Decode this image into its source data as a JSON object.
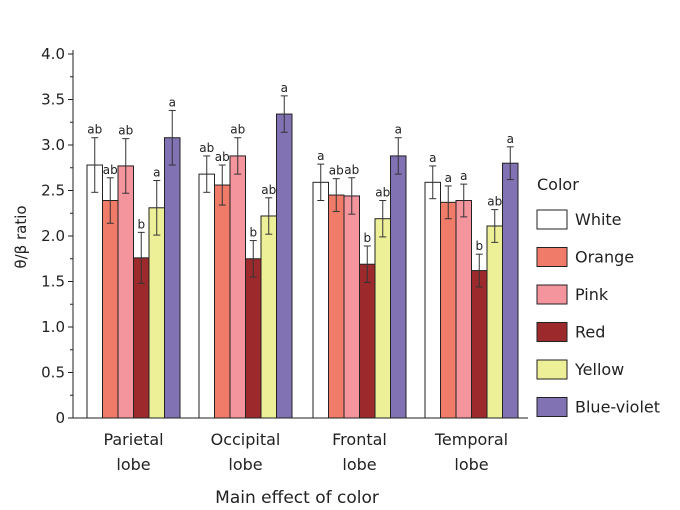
{
  "chart_data": {
    "type": "bar",
    "xlabel": "Main effect of color",
    "ylabel": "θ/β ratio",
    "ylim": [
      0,
      4.0
    ],
    "yticks": [
      "0",
      "0.5",
      "1.0",
      "1.5",
      "2.0",
      "2.5",
      "3.0",
      "3.5",
      "4.0"
    ],
    "categories": [
      [
        "Parietal",
        "lobe"
      ],
      [
        "Occipital",
        "lobe"
      ],
      [
        "Frontal",
        "lobe"
      ],
      [
        "Temporal",
        "lobe"
      ]
    ],
    "legend_title": "Color",
    "legend_position": "right",
    "series": [
      {
        "name": "White",
        "color": "#ffffff",
        "values": [
          2.78,
          2.68,
          2.59,
          2.59
        ],
        "errors": [
          0.3,
          0.2,
          0.2,
          0.18
        ],
        "labels": [
          "ab",
          "ab",
          "a",
          "a"
        ]
      },
      {
        "name": "Orange",
        "color": "#f07b68",
        "values": [
          2.39,
          2.56,
          2.45,
          2.37
        ],
        "errors": [
          0.25,
          0.22,
          0.18,
          0.18
        ],
        "labels": [
          "ab",
          "ab",
          "ab",
          "a"
        ]
      },
      {
        "name": "Pink",
        "color": "#f4949c",
        "values": [
          2.77,
          2.88,
          2.44,
          2.39
        ],
        "errors": [
          0.3,
          0.2,
          0.2,
          0.18
        ],
        "labels": [
          "ab",
          "ab",
          "ab",
          "a"
        ]
      },
      {
        "name": "Red",
        "color": "#9c2a2c",
        "values": [
          1.76,
          1.75,
          1.69,
          1.62
        ],
        "errors": [
          0.28,
          0.2,
          0.2,
          0.18
        ],
        "labels": [
          "b",
          "b",
          "b",
          "b"
        ]
      },
      {
        "name": "Yellow",
        "color": "#eef098",
        "values": [
          2.31,
          2.22,
          2.19,
          2.11
        ],
        "errors": [
          0.3,
          0.2,
          0.2,
          0.18
        ],
        "labels": [
          "a",
          "ab",
          "ab",
          "ab"
        ]
      },
      {
        "name": "Blue-violet",
        "color": "#8072b3",
        "values": [
          3.08,
          3.34,
          2.88,
          2.8
        ],
        "errors": [
          0.3,
          0.2,
          0.2,
          0.18
        ],
        "labels": [
          "a",
          "a",
          "a",
          "a"
        ]
      }
    ]
  }
}
